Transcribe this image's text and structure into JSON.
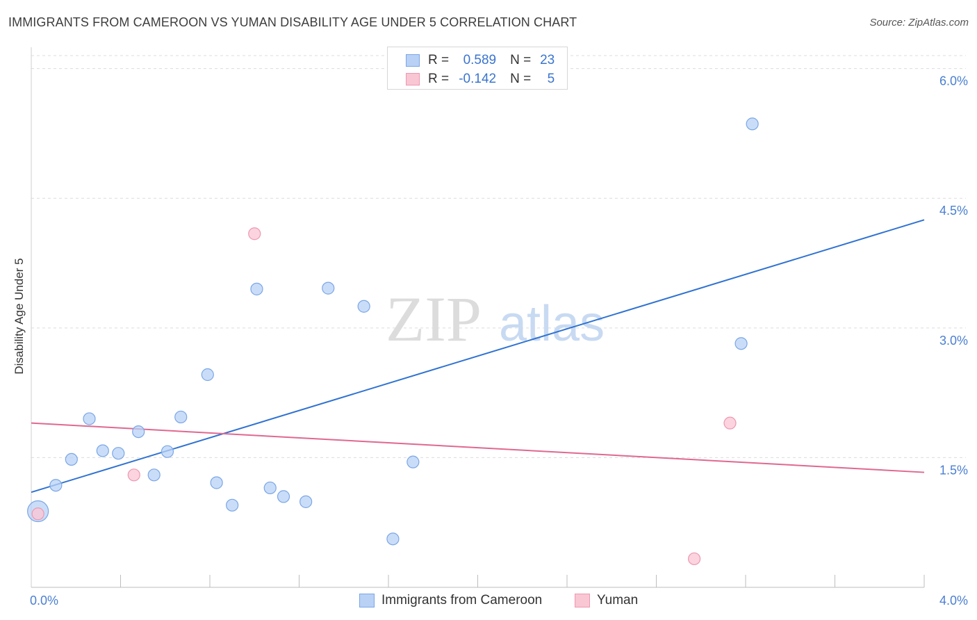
{
  "header": {
    "title": "IMMIGRANTS FROM CAMEROON VS YUMAN DISABILITY AGE UNDER 5 CORRELATION CHART",
    "source": "Source: ZipAtlas.com"
  },
  "watermark": {
    "zip": "ZIP",
    "atlas": "atlas"
  },
  "legend": {
    "rows": [
      {
        "r_label": "R =",
        "r_value": "0.589",
        "n_label": "N =",
        "n_value": "23"
      },
      {
        "r_label": "R =",
        "r_value": "-0.142",
        "n_label": "N =",
        "n_value": "5"
      }
    ]
  },
  "colors": {
    "blue_fill": "#b8d1f5",
    "blue_stroke": "#7aa6e6",
    "blue_line": "#2f72d1",
    "pink_fill": "#f9c6d4",
    "pink_stroke": "#ee97b0",
    "pink_line": "#e0688f",
    "tick_text": "#4a7fd1",
    "grid": "#dcdcdc"
  },
  "chart_data": {
    "type": "scatter",
    "title": "IMMIGRANTS FROM CAMEROON VS YUMAN DISABILITY AGE UNDER 5 CORRELATION CHART",
    "xlabel": "",
    "ylabel": "Disability Age Under 5",
    "xlim": [
      0,
      4
    ],
    "ylim": [
      0,
      6.15
    ],
    "x_tick_labels": [
      "0.0%",
      "4.0%"
    ],
    "x_tick_values": [
      0,
      4
    ],
    "y_tick_labels": [
      "1.5%",
      "3.0%",
      "4.5%",
      "6.0%"
    ],
    "y_tick_values": [
      1.5,
      3.0,
      4.5,
      6.0
    ],
    "grid": true,
    "legend_placement": "top-center",
    "series": [
      {
        "name": "Immigrants from Cameroon",
        "color": "#b8d1f5",
        "points": [
          {
            "x": 0.03,
            "y": 0.88,
            "big": true
          },
          {
            "x": 0.11,
            "y": 1.18
          },
          {
            "x": 0.18,
            "y": 1.48
          },
          {
            "x": 0.26,
            "y": 1.95
          },
          {
            "x": 0.32,
            "y": 1.58
          },
          {
            "x": 0.39,
            "y": 1.55
          },
          {
            "x": 0.48,
            "y": 1.8
          },
          {
            "x": 0.55,
            "y": 1.3
          },
          {
            "x": 0.61,
            "y": 1.57
          },
          {
            "x": 0.67,
            "y": 1.97
          },
          {
            "x": 0.79,
            "y": 2.46
          },
          {
            "x": 0.83,
            "y": 1.21
          },
          {
            "x": 0.9,
            "y": 0.95
          },
          {
            "x": 1.01,
            "y": 3.45
          },
          {
            "x": 1.07,
            "y": 1.15
          },
          {
            "x": 1.13,
            "y": 1.05
          },
          {
            "x": 1.23,
            "y": 0.99
          },
          {
            "x": 1.33,
            "y": 3.46
          },
          {
            "x": 1.49,
            "y": 3.25
          },
          {
            "x": 1.62,
            "y": 0.56
          },
          {
            "x": 1.71,
            "y": 1.45
          },
          {
            "x": 3.18,
            "y": 2.82
          },
          {
            "x": 3.23,
            "y": 5.36
          }
        ],
        "trend": {
          "x": [
            0,
            4
          ],
          "y": [
            1.1,
            4.25
          ]
        }
      },
      {
        "name": "Yuman",
        "color": "#f9c6d4",
        "points": [
          {
            "x": 0.03,
            "y": 0.85
          },
          {
            "x": 0.46,
            "y": 1.3
          },
          {
            "x": 1.0,
            "y": 4.09
          },
          {
            "x": 2.97,
            "y": 0.33
          },
          {
            "x": 3.13,
            "y": 1.9
          }
        ],
        "trend": {
          "x": [
            0,
            4
          ],
          "y": [
            1.9,
            1.33
          ]
        }
      }
    ]
  }
}
